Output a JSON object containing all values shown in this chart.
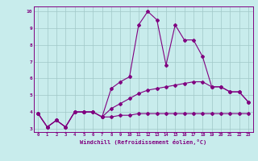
{
  "x": [
    0,
    1,
    2,
    3,
    4,
    5,
    6,
    7,
    8,
    9,
    10,
    11,
    12,
    13,
    14,
    15,
    16,
    17,
    18,
    19,
    20,
    21,
    22,
    23
  ],
  "line1": [
    3.9,
    3.1,
    3.5,
    3.1,
    4.0,
    4.0,
    4.0,
    3.7,
    5.4,
    5.8,
    6.1,
    9.2,
    10.0,
    9.5,
    6.8,
    9.2,
    8.3,
    8.3,
    7.3,
    5.5,
    5.5,
    5.2,
    5.2,
    4.6
  ],
  "line2": [
    3.9,
    3.1,
    3.5,
    3.1,
    4.0,
    4.0,
    4.0,
    3.7,
    4.2,
    4.5,
    4.8,
    5.1,
    5.3,
    5.4,
    5.5,
    5.6,
    5.7,
    5.8,
    5.8,
    5.5,
    5.5,
    5.2,
    5.2,
    4.6
  ],
  "line3": [
    3.9,
    3.1,
    3.5,
    3.1,
    4.0,
    4.0,
    4.0,
    3.7,
    3.7,
    3.8,
    3.8,
    3.9,
    3.9,
    3.9,
    3.9,
    3.9,
    3.9,
    3.9,
    3.9,
    3.9,
    3.9,
    3.9,
    3.9,
    3.9
  ],
  "color": "#800080",
  "bg_color": "#c8ecec",
  "grid_color": "#a0c8c8",
  "xlabel": "Windchill (Refroidissement éolien,°C)",
  "xlim": [
    -0.5,
    23.5
  ],
  "ylim": [
    2.8,
    10.3
  ],
  "yticks": [
    3,
    4,
    5,
    6,
    7,
    8,
    9,
    10
  ],
  "xticks": [
    0,
    1,
    2,
    3,
    4,
    5,
    6,
    7,
    8,
    9,
    10,
    11,
    12,
    13,
    14,
    15,
    16,
    17,
    18,
    19,
    20,
    21,
    22,
    23
  ]
}
